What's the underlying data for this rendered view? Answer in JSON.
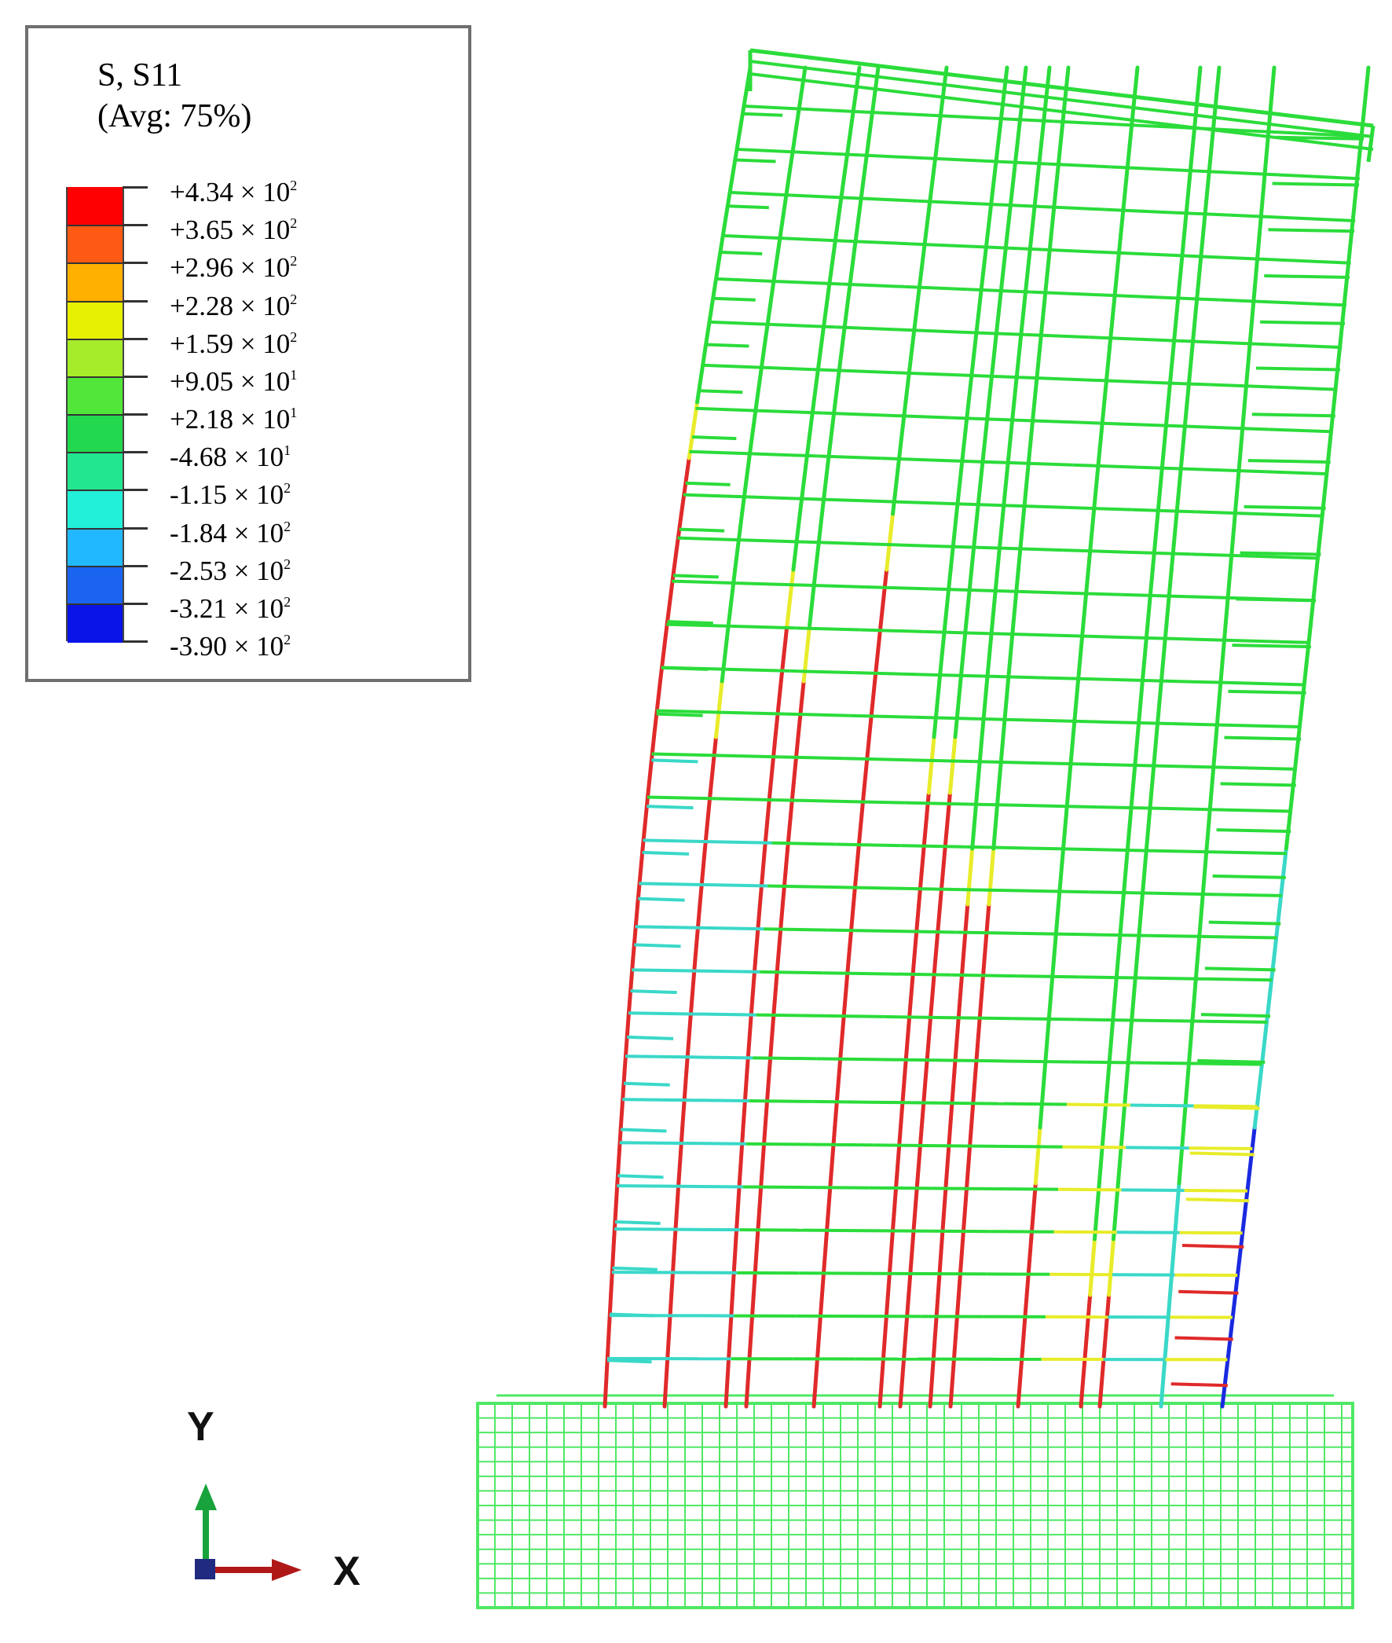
{
  "legend": {
    "title_line1": "S, S11",
    "title_line2": "(Avg: 75%)",
    "ticks": [
      {
        "mantissa": "+4.34",
        "exp": "2"
      },
      {
        "mantissa": "+3.65",
        "exp": "2"
      },
      {
        "mantissa": "+2.96",
        "exp": "2"
      },
      {
        "mantissa": "+2.28",
        "exp": "2"
      },
      {
        "mantissa": "+1.59",
        "exp": "2"
      },
      {
        "mantissa": "+9.05",
        "exp": "1"
      },
      {
        "mantissa": "+2.18",
        "exp": "1"
      },
      {
        "mantissa": "-4.68",
        "exp": "1"
      },
      {
        "mantissa": "-1.15",
        "exp": "2"
      },
      {
        "mantissa": "-1.84",
        "exp": "2"
      },
      {
        "mantissa": "-2.53",
        "exp": "2"
      },
      {
        "mantissa": "-3.21",
        "exp": "2"
      },
      {
        "mantissa": "-3.90",
        "exp": "2"
      }
    ],
    "band_colors": [
      "#ff0000",
      "#ff5a14",
      "#ffb000",
      "#e6f000",
      "#a6ec2a",
      "#52e63a",
      "#22d84e",
      "#22e690",
      "#22f0d8",
      "#22b8ff",
      "#1a64f0",
      "#0a14e6"
    ]
  },
  "axes": {
    "y_label": "Y",
    "x_label": "X",
    "y_color": "#19a33c",
    "x_color": "#b01818",
    "z_color": "#1f2a80"
  },
  "colors": {
    "green": "#2bdc3a",
    "red": "#e02a2a",
    "cyan": "#3ad8c8",
    "yellow": "#e8ec2a",
    "blue": "#1a2ae0",
    "footing": "#4ee864"
  }
}
